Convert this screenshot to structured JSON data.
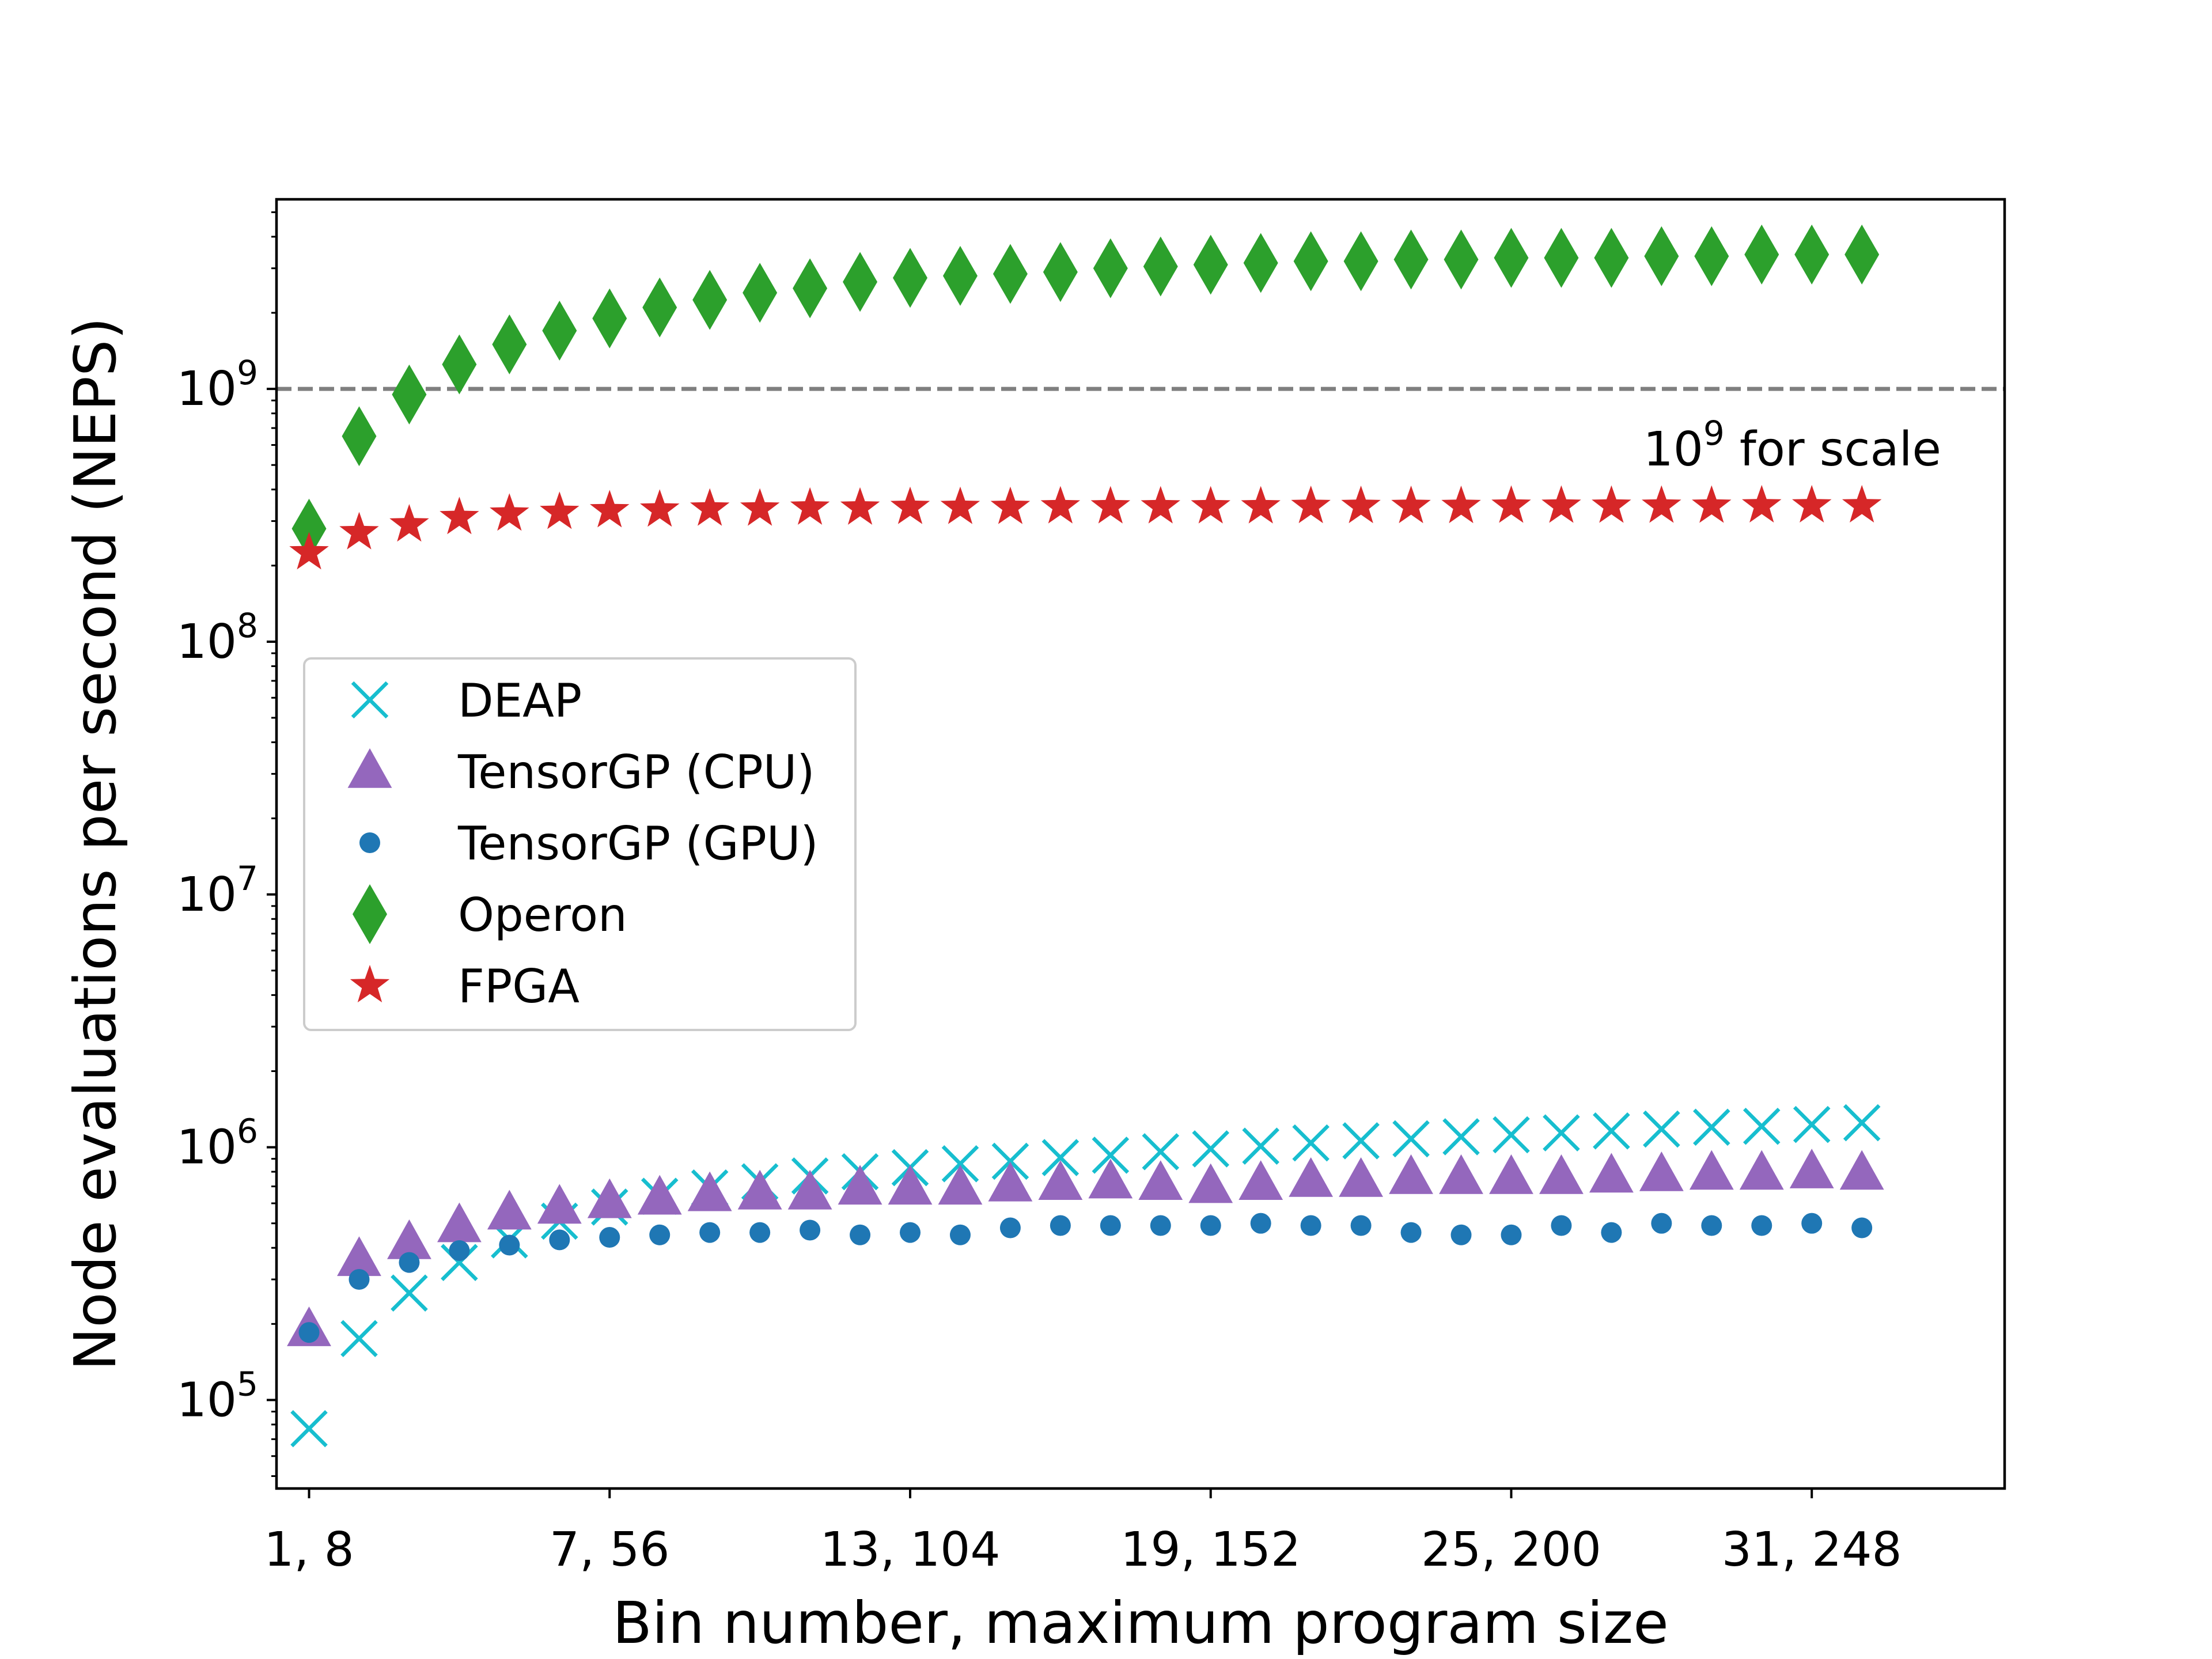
{
  "chart_data": {
    "type": "scatter",
    "xlabel": "Bin number, maximum program size",
    "ylabel": "Node evaluations per second (NEPS)",
    "yscale": "log",
    "xlim": [
      0.35,
      34.85
    ],
    "ylim_log10": [
      4.65,
      9.75
    ],
    "x_ticks": [
      {
        "x": 1,
        "label": "1, 8"
      },
      {
        "x": 7,
        "label": "7, 56"
      },
      {
        "x": 13,
        "label": "13, 104"
      },
      {
        "x": 19,
        "label": "19, 152"
      },
      {
        "x": 25,
        "label": "25, 200"
      },
      {
        "x": 31,
        "label": "31, 248"
      }
    ],
    "y_ticks": [
      {
        "value": 100000,
        "base": "10",
        "exp": "5"
      },
      {
        "value": 1000000,
        "base": "10",
        "exp": "6"
      },
      {
        "value": 10000000,
        "base": "10",
        "exp": "7"
      },
      {
        "value": 100000000,
        "base": "10",
        "exp": "8"
      },
      {
        "value": 1000000000,
        "base": "10",
        "exp": "9"
      }
    ],
    "reference_line": {
      "value": 1000000000,
      "color": "#7f7f7f",
      "label_base": "10",
      "label_exp": "9",
      "label_text": " for scale"
    },
    "legend_position": "center-left",
    "x": [
      1,
      2,
      3,
      4,
      5,
      6,
      7,
      8,
      9,
      10,
      11,
      12,
      13,
      14,
      15,
      16,
      17,
      18,
      19,
      20,
      21,
      22,
      23,
      24,
      25,
      26,
      27,
      28,
      29,
      30,
      31,
      32
    ],
    "series": [
      {
        "name": "DEAP",
        "marker": "x",
        "color": "#17becf",
        "values": [
          77000,
          175000,
          265000,
          350000,
          430000,
          510000,
          580000,
          640000,
          690000,
          730000,
          770000,
          800000,
          830000,
          860000,
          880000,
          910000,
          930000,
          960000,
          985000,
          1010000,
          1040000,
          1060000,
          1080000,
          1100000,
          1120000,
          1140000,
          1160000,
          1180000,
          1200000,
          1210000,
          1230000,
          1250000
        ]
      },
      {
        "name": "TensorGP (CPU)",
        "marker": "triangle",
        "color": "#9467bd",
        "values": [
          190000,
          360000,
          420000,
          490000,
          550000,
          580000,
          610000,
          630000,
          650000,
          660000,
          660000,
          690000,
          690000,
          690000,
          710000,
          720000,
          730000,
          720000,
          700000,
          720000,
          740000,
          740000,
          760000,
          760000,
          760000,
          760000,
          770000,
          780000,
          790000,
          790000,
          800000,
          790000
        ]
      },
      {
        "name": "TensorGP (GPU)",
        "marker": "circle",
        "color": "#1f77b4",
        "values": [
          185000,
          300000,
          350000,
          390000,
          410000,
          430000,
          440000,
          450000,
          460000,
          460000,
          470000,
          450000,
          460000,
          450000,
          480000,
          490000,
          490000,
          490000,
          490000,
          500000,
          490000,
          490000,
          460000,
          450000,
          450000,
          490000,
          460000,
          500000,
          490000,
          490000,
          500000,
          480000
        ]
      },
      {
        "name": "Operon",
        "marker": "diamond",
        "color": "#2ca02c",
        "values": [
          280000000,
          650000000,
          950000000,
          1250000000,
          1500000000,
          1700000000,
          1900000000,
          2100000000,
          2250000000,
          2400000000,
          2500000000,
          2650000000,
          2750000000,
          2800000000,
          2850000000,
          2900000000,
          3000000000,
          3050000000,
          3100000000,
          3150000000,
          3200000000,
          3200000000,
          3250000000,
          3250000000,
          3300000000,
          3300000000,
          3300000000,
          3350000000,
          3350000000,
          3400000000,
          3400000000,
          3400000000
        ]
      },
      {
        "name": "FPGA",
        "marker": "star",
        "color": "#d62728",
        "values": [
          225000000,
          270000000,
          290000000,
          310000000,
          320000000,
          325000000,
          330000000,
          332000000,
          335000000,
          335000000,
          338000000,
          338000000,
          340000000,
          340000000,
          340000000,
          342000000,
          342000000,
          342000000,
          342000000,
          342000000,
          343000000,
          343000000,
          343000000,
          343000000,
          344000000,
          344000000,
          344000000,
          344000000,
          344000000,
          345000000,
          345000000,
          345000000
        ]
      }
    ]
  }
}
